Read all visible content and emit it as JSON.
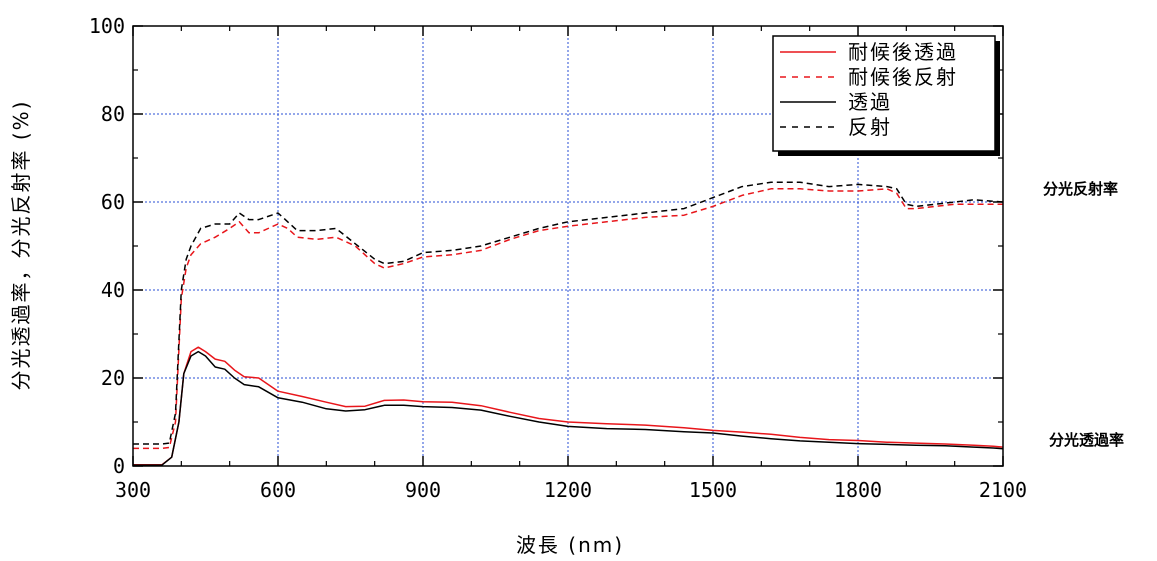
{
  "chart_data": {
    "type": "line",
    "xlabel": "波長 (nm)",
    "ylabel": "分光透過率，分光反射率 (%)",
    "xlim": [
      300,
      2100
    ],
    "ylim": [
      0,
      100
    ],
    "xticks": [
      300,
      600,
      900,
      1200,
      1500,
      1800,
      2100
    ],
    "yticks": [
      0,
      20,
      40,
      60,
      80,
      100
    ],
    "grid": true,
    "legend_position": "top-right",
    "side_labels": {
      "reflectance": "分光反射率",
      "transmittance": "分光透過率"
    },
    "colors": {
      "red": "#e8161b",
      "black": "#000000",
      "grid": "#2a4fd4"
    },
    "series": [
      {
        "name": "耐候後透過",
        "color": "#e8161b",
        "dash": "solid",
        "x": [
          300,
          360,
          380,
          395,
          405,
          420,
          435,
          450,
          470,
          490,
          510,
          530,
          560,
          600,
          650,
          700,
          740,
          780,
          820,
          860,
          900,
          960,
          1020,
          1080,
          1140,
          1200,
          1280,
          1360,
          1440,
          1500,
          1560,
          1620,
          1680,
          1740,
          1800,
          1860,
          1920,
          1980,
          2040,
          2080,
          2100
        ],
        "y": [
          0.3,
          0.3,
          2,
          10,
          21,
          26,
          27,
          26,
          24.3,
          23.8,
          21.8,
          20.3,
          20,
          17,
          15.8,
          14.5,
          13.5,
          13.6,
          14.9,
          15,
          14.6,
          14.5,
          13.7,
          12.2,
          10.8,
          10,
          9.6,
          9.3,
          8.7,
          8.1,
          7.7,
          7.2,
          6.5,
          6,
          5.8,
          5.4,
          5.2,
          5,
          4.7,
          4.5,
          4.3
        ]
      },
      {
        "name": "耐候後反射",
        "color": "#e8161b",
        "dash": "dashed",
        "x": [
          300,
          360,
          375,
          388,
          400,
          410,
          420,
          440,
          470,
          500,
          520,
          540,
          560,
          600,
          620,
          640,
          680,
          720,
          760,
          800,
          820,
          860,
          900,
          960,
          1020,
          1080,
          1140,
          1200,
          1280,
          1360,
          1440,
          1500,
          1560,
          1620,
          1680,
          1740,
          1800,
          1860,
          1880,
          1900,
          1920,
          1960,
          2000,
          2040,
          2100
        ],
        "y": [
          4,
          4,
          4.2,
          10,
          38,
          45,
          48,
          50.5,
          52,
          54,
          55.5,
          53,
          53,
          55,
          54,
          52,
          51.5,
          52,
          50,
          46,
          45,
          46,
          47.5,
          48,
          49,
          51.5,
          53.5,
          54.5,
          55.5,
          56.5,
          57,
          59,
          61.5,
          63,
          63,
          62.5,
          62.5,
          63,
          62,
          58.5,
          58.5,
          59,
          59.5,
          59.5,
          59.5
        ]
      },
      {
        "name": "透過",
        "color": "#000000",
        "dash": "solid",
        "x": [
          300,
          360,
          380,
          395,
          405,
          420,
          435,
          450,
          470,
          490,
          510,
          530,
          560,
          600,
          650,
          700,
          740,
          780,
          820,
          860,
          900,
          960,
          1020,
          1080,
          1140,
          1200,
          1280,
          1360,
          1440,
          1500,
          1560,
          1620,
          1680,
          1740,
          1800,
          1860,
          1920,
          1980,
          2040,
          2080,
          2100
        ],
        "y": [
          0.2,
          0.2,
          2,
          10,
          21,
          25,
          26,
          25,
          22.5,
          22,
          20,
          18.5,
          18,
          15.5,
          14.5,
          13,
          12.5,
          12.8,
          13.8,
          13.8,
          13.5,
          13.3,
          12.7,
          11.3,
          10,
          9,
          8.5,
          8.3,
          7.8,
          7.5,
          6.8,
          6.2,
          5.7,
          5.4,
          5.1,
          4.9,
          4.7,
          4.6,
          4.3,
          4.1,
          3.9
        ]
      },
      {
        "name": "反射",
        "color": "#000000",
        "dash": "dashed",
        "x": [
          300,
          360,
          375,
          388,
          400,
          410,
          420,
          440,
          470,
          500,
          520,
          540,
          560,
          600,
          620,
          640,
          680,
          720,
          760,
          800,
          820,
          860,
          900,
          960,
          1020,
          1080,
          1140,
          1200,
          1280,
          1360,
          1440,
          1500,
          1560,
          1620,
          1680,
          1740,
          1800,
          1860,
          1880,
          1900,
          1920,
          1960,
          2000,
          2040,
          2100
        ],
        "y": [
          5,
          5,
          5.2,
          12,
          40,
          47,
          50,
          54,
          55,
          55,
          57.5,
          56,
          56,
          57.5,
          55.5,
          53.5,
          53.5,
          54,
          50.5,
          47,
          46,
          46.5,
          48.5,
          49,
          50,
          52,
          54,
          55.5,
          56.5,
          57.5,
          58.5,
          61,
          63.5,
          64.5,
          64.5,
          63.5,
          64,
          63.5,
          63,
          59.5,
          59,
          59.5,
          60,
          60.5,
          60
        ]
      }
    ]
  }
}
